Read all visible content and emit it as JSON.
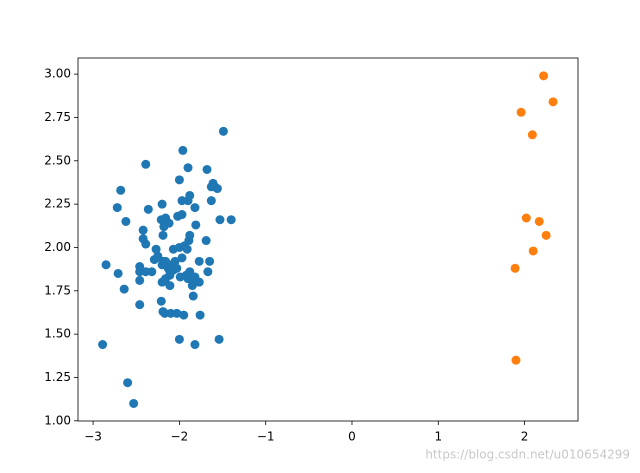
{
  "chart_data": {
    "type": "scatter",
    "xlim": [
      -3.175,
      2.619
    ],
    "ylim": [
      0.999,
      3.093
    ],
    "xticks": [
      {
        "value": -3,
        "label": "−3"
      },
      {
        "value": -2,
        "label": "−2"
      },
      {
        "value": -1,
        "label": "−1"
      },
      0,
      1,
      2
    ],
    "yticks": [
      {
        "value": 1,
        "label": "1.00"
      },
      {
        "value": 1.25,
        "label": "1.25"
      },
      {
        "value": 1.5,
        "label": "1.50"
      },
      {
        "value": 1.75,
        "label": "1.75"
      },
      {
        "value": 2,
        "label": "2.00"
      },
      {
        "value": 2.25,
        "label": "2.25"
      },
      {
        "value": 2.5,
        "label": "2.50"
      },
      {
        "value": 2.75,
        "label": "2.75"
      },
      {
        "value": 3,
        "label": "3.00"
      }
    ],
    "watermark": "https://blog.csdn.net/u010654299",
    "series": [
      {
        "color": "#1f77b4",
        "x": [
          -1.49,
          -1.96,
          -1.68,
          -1.9,
          -2.39,
          -1.61,
          -2.0,
          -2.68,
          -1.63,
          -1.97,
          -1.88,
          -2.72,
          -2.62,
          -2.36,
          -2.2,
          -1.9,
          -1.82,
          -1.81,
          -2.02,
          -1.97,
          -1.4,
          -1.53,
          -1.63,
          -1.59,
          -1.56,
          -2.21,
          -2.16,
          -2.18,
          -2.12,
          -2.42,
          -2.42,
          -2.19,
          -1.88,
          -1.89,
          -2.0,
          -1.69,
          -1.94,
          -1.91,
          -2.07,
          -2.27,
          -2.39,
          -2.29,
          -2.25,
          -2.19,
          -2.46,
          -2.46,
          -2.85,
          -2.71,
          -2.39,
          -2.32,
          -2.2,
          -2.16,
          -2.13,
          -2.11,
          -2.09,
          -2.05,
          -2.07,
          -2.03,
          -2.11,
          -1.97,
          -1.92,
          -1.88,
          -1.77,
          -1.65,
          -1.82,
          -1.9,
          -1.83,
          -1.77,
          -1.85,
          -1.99,
          -2.16,
          -2.11,
          -1.67,
          -2.2,
          -2.46,
          -2.64,
          -2.21,
          -1.84,
          -2.19,
          -2.46,
          -2.17,
          -2.1,
          -2.03,
          -1.95,
          -1.76,
          -2.0,
          -1.82,
          -1.54,
          -2.89,
          -2.6,
          -2.53
        ],
        "values": [
          2.67,
          2.56,
          2.45,
          2.46,
          2.48,
          2.37,
          2.39,
          2.33,
          2.35,
          2.27,
          2.3,
          2.23,
          2.15,
          2.22,
          2.25,
          2.27,
          2.23,
          2.13,
          2.18,
          2.19,
          2.16,
          2.16,
          2.27,
          2.35,
          2.34,
          2.16,
          2.17,
          2.12,
          2.14,
          2.1,
          2.05,
          2.07,
          2.07,
          2.04,
          2.0,
          2.04,
          2.01,
          1.99,
          1.99,
          1.99,
          2.02,
          1.93,
          1.95,
          1.92,
          1.86,
          1.89,
          1.9,
          1.85,
          1.86,
          1.86,
          1.9,
          1.92,
          1.88,
          1.86,
          1.9,
          1.92,
          1.87,
          1.88,
          1.84,
          1.94,
          1.84,
          1.86,
          1.92,
          1.92,
          1.83,
          1.82,
          1.81,
          1.8,
          1.78,
          1.83,
          1.82,
          1.78,
          1.86,
          1.8,
          1.81,
          1.76,
          1.69,
          1.72,
          1.63,
          1.67,
          1.62,
          1.62,
          1.62,
          1.61,
          1.61,
          1.47,
          1.44,
          1.47,
          1.44,
          1.22,
          1.1
        ]
      },
      {
        "color": "#ff7f0e",
        "x": [
          2.22,
          2.33,
          1.96,
          2.09,
          2.02,
          2.17,
          2.25,
          2.1,
          1.89,
          1.9
        ],
        "values": [
          2.99,
          2.84,
          2.78,
          2.65,
          2.17,
          2.15,
          2.07,
          1.98,
          1.88,
          1.35
        ]
      }
    ]
  }
}
